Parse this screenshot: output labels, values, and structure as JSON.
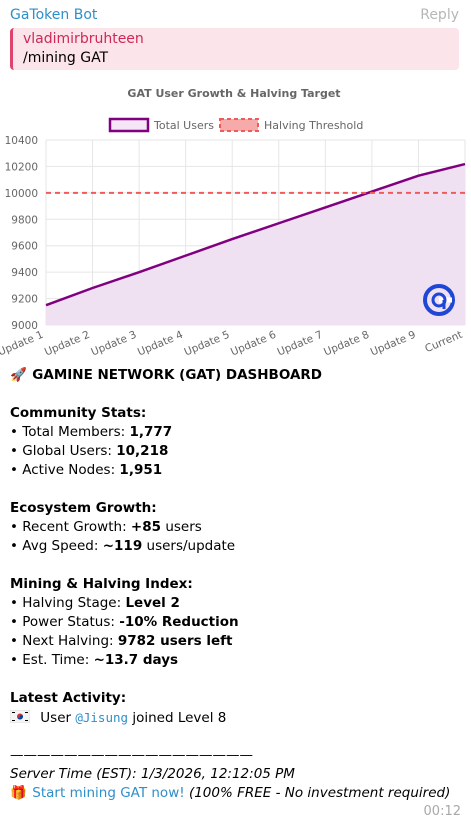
{
  "header": {
    "sender": "GaToken Bot",
    "reply_label": "Reply"
  },
  "quote": {
    "author": "vladimirbruhteen",
    "text": "/mining GAT"
  },
  "chart_data": {
    "type": "line",
    "title": "GAT User Growth & Halving Target",
    "categories": [
      "Update 1",
      "Update 2",
      "Update 3",
      "Update 4",
      "Update 5",
      "Update 6",
      "Update 7",
      "Update 8",
      "Update 9",
      "Current"
    ],
    "series": [
      {
        "name": "Total Users",
        "values": [
          9150,
          9280,
          9400,
          9525,
          9650,
          9770,
          9890,
          10010,
          10130,
          10218
        ],
        "color": "#800080",
        "fill": "#efe0f2"
      },
      {
        "name": "Halving Threshold",
        "values": [
          10000,
          10000,
          10000,
          10000,
          10000,
          10000,
          10000,
          10000,
          10000,
          10000
        ],
        "color": "#ef5b5b",
        "dashed": true
      }
    ],
    "ylim": [
      9000,
      10400
    ],
    "yticks": [
      9000,
      9200,
      9400,
      9600,
      9800,
      10000,
      10200,
      10400
    ],
    "grid": true,
    "legend": "top",
    "xlabel": "",
    "ylabel": ""
  },
  "message": {
    "title": "GAMINE NETWORK (GAT) DASHBOARD",
    "community": {
      "heading": "Community Stats:",
      "members_label": "• Total Members: ",
      "members": "1,777",
      "global_label": "• Global Users: ",
      "global": "10,218",
      "nodes_label": "• Active Nodes: ",
      "nodes": "1,951"
    },
    "growth": {
      "heading": "Ecosystem Growth:",
      "recent_label": "• Recent Growth: ",
      "recent": "+85",
      "recent_suffix": " users",
      "speed_label": "• Avg Speed: ",
      "speed": "~119",
      "speed_suffix": " users/update"
    },
    "mining": {
      "heading": "Mining & Halving Index:",
      "stage_label": "• Halving Stage: ",
      "stage": "Level 2",
      "power_label": "• Power Status: ",
      "power": "-10% Reduction",
      "next_label": "• Next Halving: ",
      "next": "9782 users left",
      "est_label": "• Est. Time: ",
      "est": "~13.7 days"
    },
    "activity": {
      "heading": "Latest Activity:",
      "prefix": " User ",
      "user": "@Jisung",
      "suffix": " joined Level 8"
    },
    "divider": "——————————————————",
    "server_time": "Server Time (EST): 1/3/2026, 12:12:05 PM",
    "cta_link": "Start mining GAT now!",
    "cta_note": " (100% FREE - No investment required)"
  },
  "timestamp": "00:12",
  "icons": {
    "rocket": "rocket-icon",
    "gift": "gift-icon",
    "flag": "korea-flag-icon",
    "logo": "gamine-logo-icon"
  }
}
